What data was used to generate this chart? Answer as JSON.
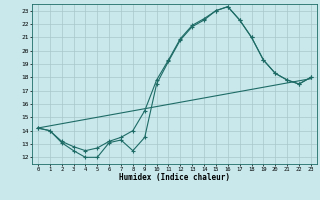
{
  "xlabel": "Humidex (Indice chaleur)",
  "background_color": "#c8e8ec",
  "grid_color": "#a8c8cc",
  "line_color": "#1e6b65",
  "xlim": [
    -0.5,
    23.5
  ],
  "ylim": [
    11.5,
    23.5
  ],
  "xticks": [
    0,
    1,
    2,
    3,
    4,
    5,
    6,
    7,
    8,
    9,
    10,
    11,
    12,
    13,
    14,
    15,
    16,
    17,
    18,
    19,
    20,
    21,
    22,
    23
  ],
  "yticks": [
    12,
    13,
    14,
    15,
    16,
    17,
    18,
    19,
    20,
    21,
    22,
    23
  ],
  "curve1_x": [
    0,
    1,
    2,
    3,
    4,
    5,
    6,
    7,
    8,
    9,
    10,
    11,
    12,
    13,
    14,
    15,
    16,
    17,
    18,
    19,
    20,
    21,
    22,
    23
  ],
  "curve1_y": [
    14.2,
    14.0,
    13.1,
    12.5,
    12.0,
    12.0,
    13.1,
    13.3,
    12.5,
    13.5,
    17.5,
    19.2,
    20.8,
    21.8,
    22.3,
    23.0,
    23.3,
    22.3,
    21.0,
    19.3,
    18.3,
    17.8,
    17.5,
    18.0
  ],
  "curve2_x": [
    0,
    1,
    2,
    3,
    4,
    5,
    6,
    7,
    8,
    9,
    10,
    11,
    12,
    13,
    14,
    15,
    16,
    17,
    18,
    19,
    20,
    21,
    22,
    23
  ],
  "curve2_y": [
    14.2,
    14.0,
    13.2,
    12.8,
    12.5,
    12.7,
    13.2,
    13.5,
    14.0,
    15.5,
    17.8,
    19.3,
    20.9,
    21.9,
    22.4,
    23.0,
    23.3,
    22.3,
    21.0,
    19.3,
    18.3,
    17.8,
    17.5,
    18.0
  ],
  "line3_x": [
    0,
    23
  ],
  "line3_y": [
    14.2,
    17.9
  ]
}
